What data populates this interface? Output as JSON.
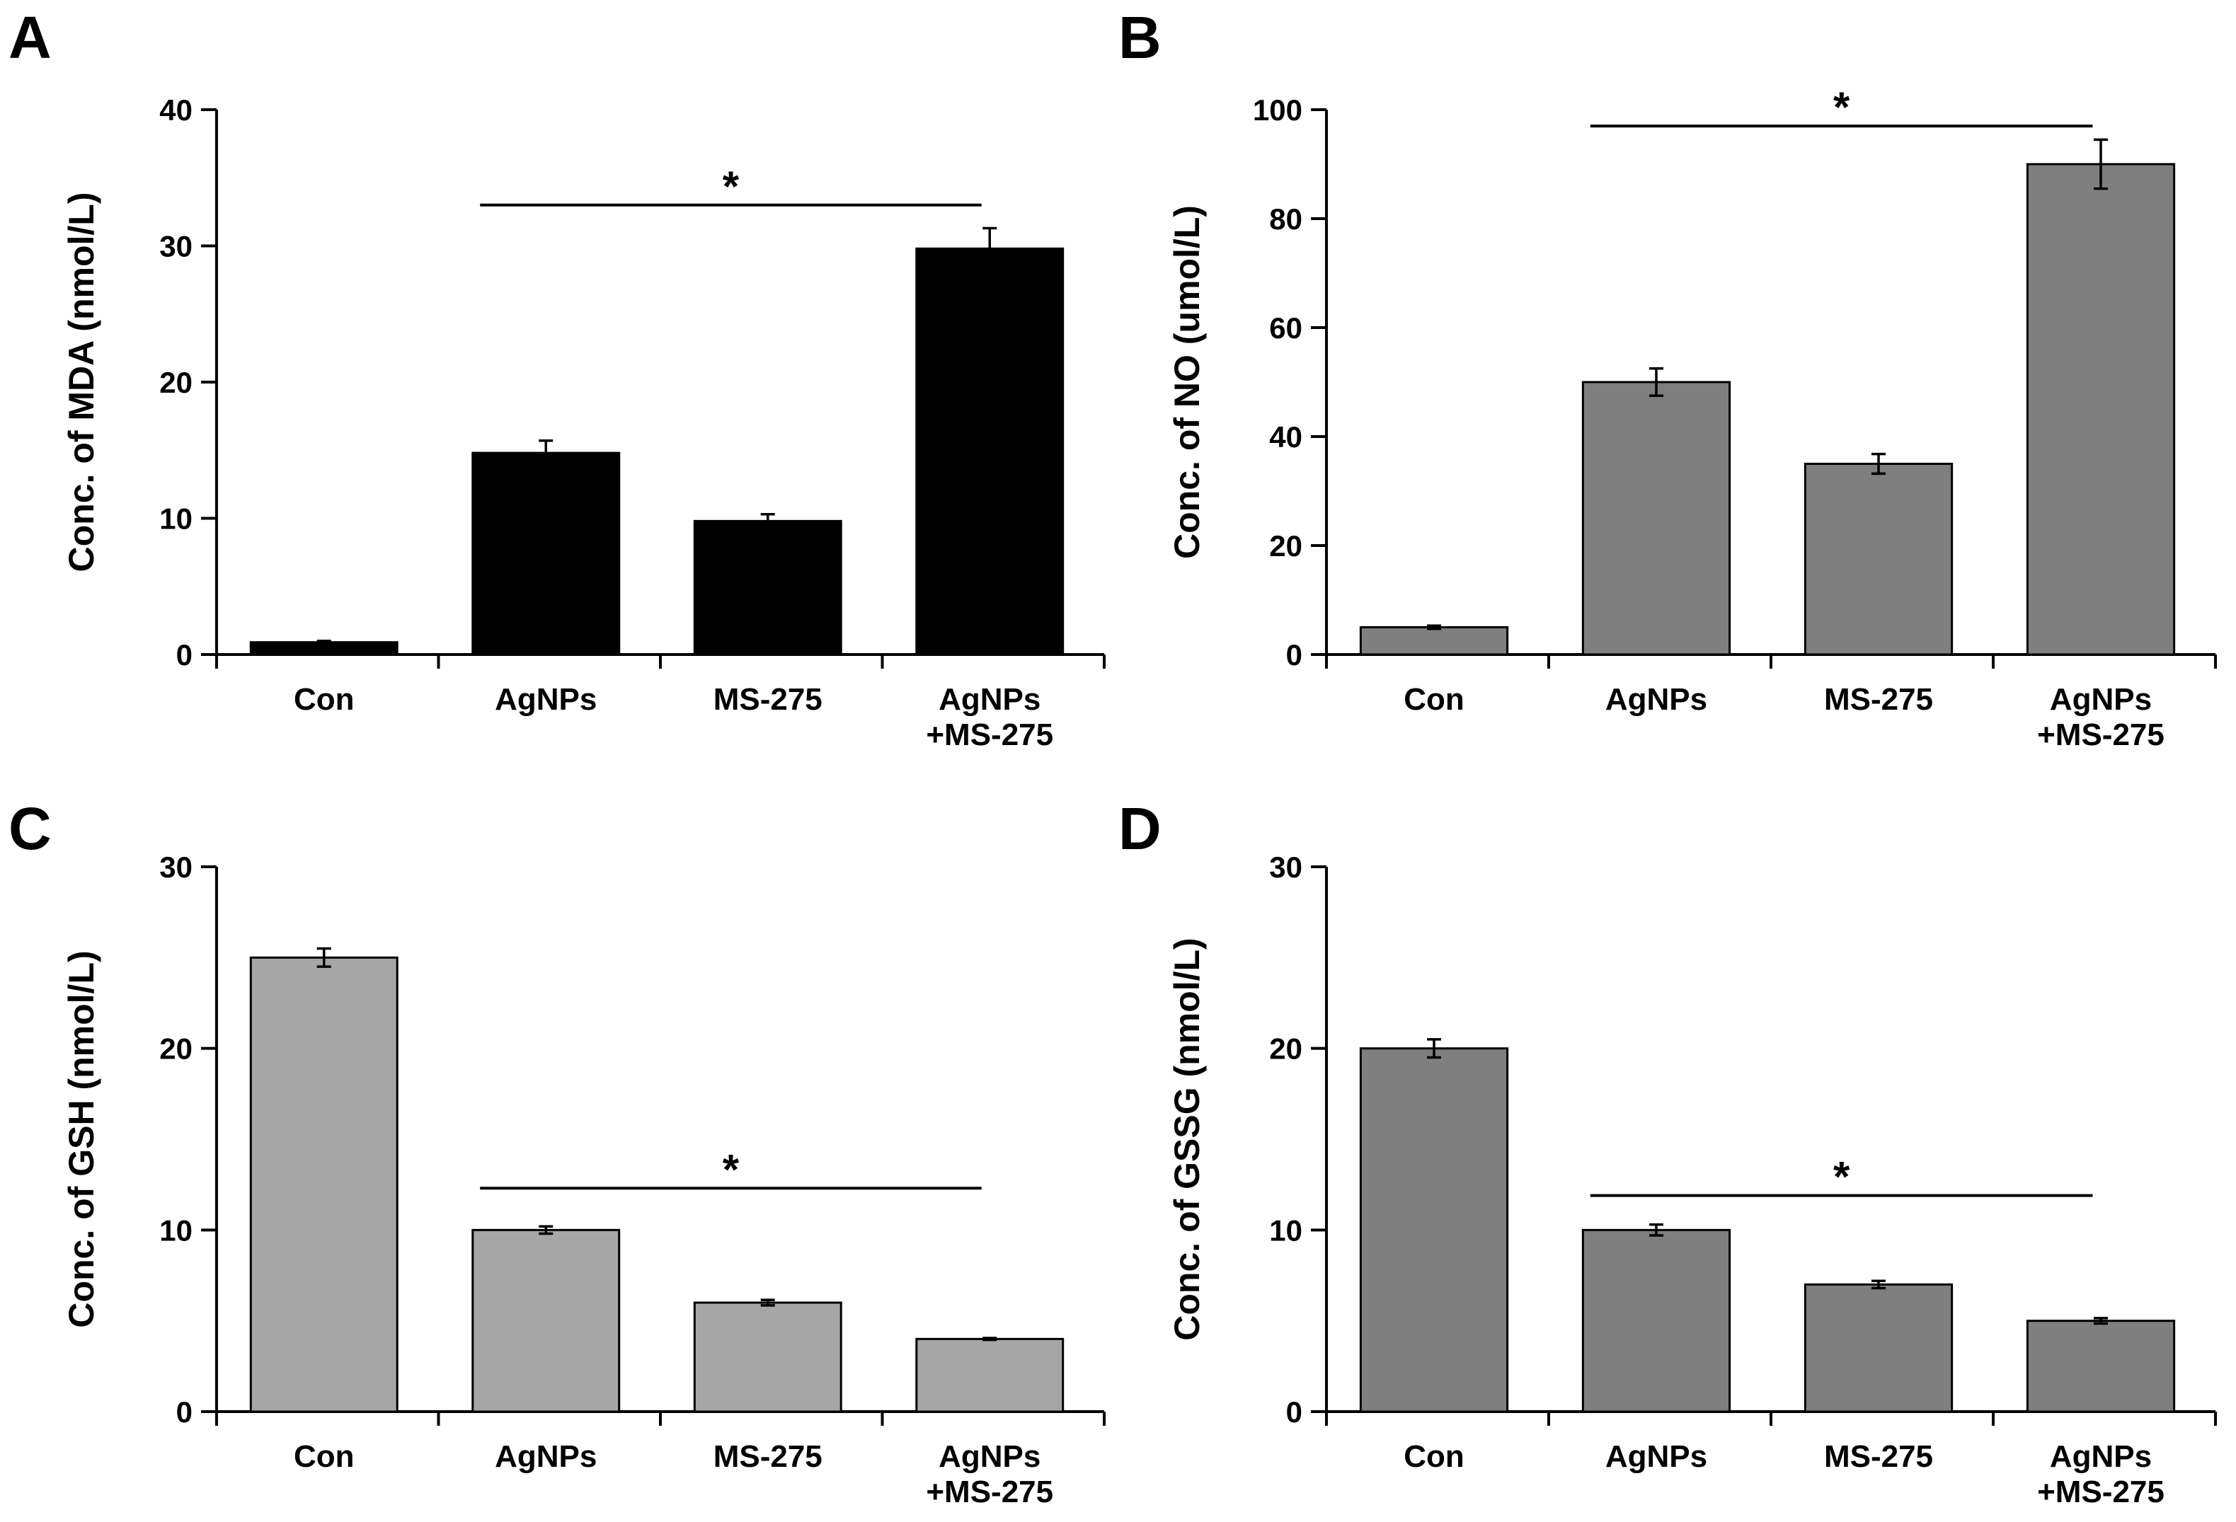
{
  "chart_data": [
    {
      "panel": "A",
      "type": "bar",
      "categories": [
        "Con",
        "AgNPs",
        "MS-275",
        "AgNPs\n+MS-275"
      ],
      "values": [
        0.9,
        14.8,
        9.8,
        29.8
      ],
      "errors": [
        0.1,
        0.9,
        0.5,
        1.5
      ],
      "ylabel": "Conc. of MDA (nmol/L)",
      "ylim": [
        0,
        40
      ],
      "yticks": [
        0,
        10,
        20,
        30,
        40
      ],
      "bar_color": "#000000",
      "significance": {
        "from": 1,
        "to": 3,
        "y": 33,
        "label": "*"
      }
    },
    {
      "panel": "B",
      "type": "bar",
      "categories": [
        "Con",
        "AgNPs",
        "MS-275",
        "AgNPs\n+MS-275"
      ],
      "values": [
        5,
        50,
        35,
        90
      ],
      "errors": [
        0.3,
        2.5,
        1.8,
        4.5
      ],
      "ylabel": "Conc. of NO (umol/L)",
      "ylim": [
        0,
        100
      ],
      "yticks": [
        0,
        20,
        40,
        60,
        80,
        100
      ],
      "bar_color": "#7f7f7f",
      "significance": {
        "from": 1,
        "to": 3,
        "y": 97,
        "label": "*"
      }
    },
    {
      "panel": "C",
      "type": "bar",
      "categories": [
        "Con",
        "AgNPs",
        "MS-275",
        "AgNPs\n+MS-275"
      ],
      "values": [
        25,
        10,
        6,
        4
      ],
      "errors": [
        0.5,
        0.2,
        0.15,
        0.05
      ],
      "ylabel": "Conc. of GSH (nmol/L)",
      "ylim": [
        0,
        30
      ],
      "yticks": [
        0,
        10,
        20,
        30
      ],
      "bar_color": "#a6a6a6",
      "significance": {
        "from": 1,
        "to": 3,
        "y": 12.3,
        "label": "*"
      }
    },
    {
      "panel": "D",
      "type": "bar",
      "categories": [
        "Con",
        "AgNPs",
        "MS-275",
        "AgNPs\n+MS-275"
      ],
      "values": [
        20,
        10,
        7,
        5
      ],
      "errors": [
        0.5,
        0.3,
        0.2,
        0.15
      ],
      "ylabel": "Conc. of GSSG (nmol/L)",
      "ylim": [
        0,
        30
      ],
      "yticks": [
        0,
        10,
        20,
        30
      ],
      "bar_color": "#7f7f7f",
      "significance": {
        "from": 1,
        "to": 3,
        "y": 11.9,
        "label": "*"
      }
    }
  ]
}
